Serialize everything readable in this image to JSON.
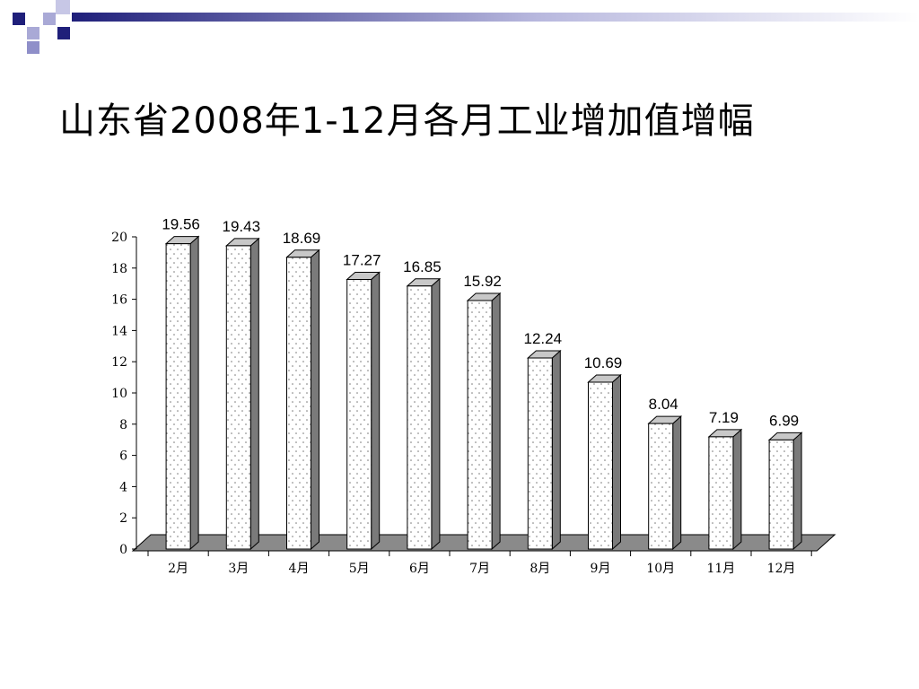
{
  "slide": {
    "title": "山东省2008年1-12月各月工业增加值增幅"
  },
  "theme": {
    "deco_dark": "#1f1f7a",
    "deco_light": "#a9a9d6",
    "bar_face": "#ffffff",
    "bar_side": "#7a7a7a",
    "bar_top": "#c8c8c8",
    "floor": "#8a8a8a"
  },
  "chart_data": {
    "type": "bar",
    "title": "",
    "xlabel": "",
    "ylabel": "",
    "categories": [
      "2月",
      "3月",
      "4月",
      "5月",
      "6月",
      "7月",
      "8月",
      "9月",
      "10月",
      "11月",
      "12月"
    ],
    "values": [
      19.56,
      19.43,
      18.69,
      17.27,
      16.85,
      15.92,
      12.24,
      10.69,
      8.04,
      7.19,
      6.99
    ],
    "value_labels": [
      "19.56",
      "19.43",
      "18.69",
      "17.27",
      "16.85",
      "15.92",
      "12.24",
      "10.69",
      "8.04",
      "7.19",
      "6.99"
    ],
    "ylim": [
      0,
      20
    ],
    "y_ticks": [
      "0",
      "2",
      "4",
      "6",
      "8",
      "10",
      "12",
      "14",
      "16",
      "18",
      "20"
    ],
    "grid": false,
    "style": "3d"
  }
}
